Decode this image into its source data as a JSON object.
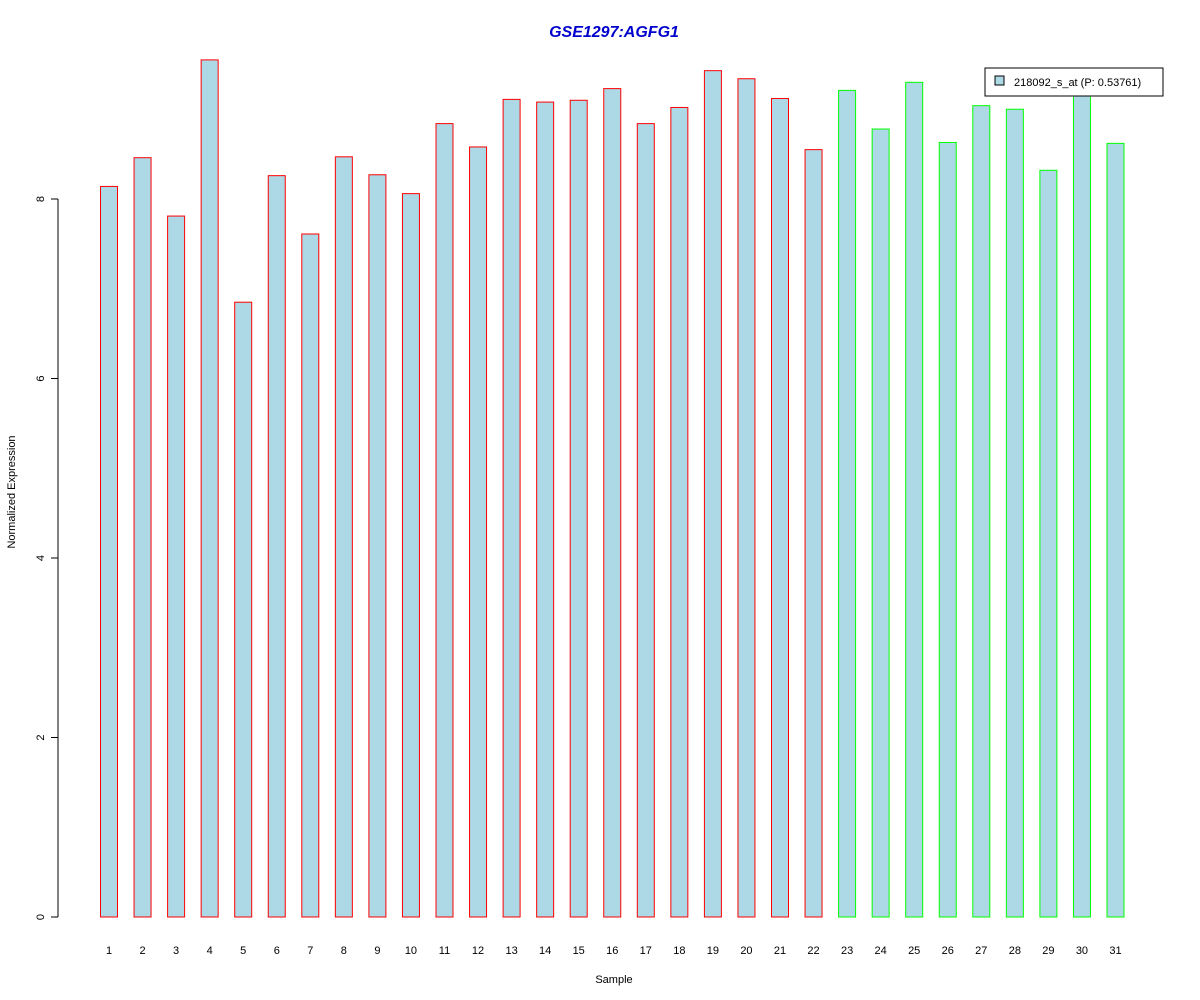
{
  "chart_data": {
    "type": "bar",
    "title": "GSE1297:AGFG1",
    "xlabel": "Sample",
    "ylabel": "Normalized Expression",
    "categories": [
      "1",
      "2",
      "3",
      "4",
      "5",
      "6",
      "7",
      "8",
      "9",
      "10",
      "11",
      "12",
      "13",
      "14",
      "15",
      "16",
      "17",
      "18",
      "19",
      "20",
      "21",
      "22",
      "23",
      "24",
      "25",
      "26",
      "27",
      "28",
      "29",
      "30",
      "31"
    ],
    "values": [
      8.14,
      8.46,
      7.81,
      9.55,
      6.85,
      8.26,
      7.61,
      8.47,
      8.27,
      8.06,
      8.84,
      8.58,
      9.11,
      9.08,
      9.1,
      9.23,
      8.84,
      9.02,
      9.43,
      9.34,
      9.12,
      8.55,
      9.21,
      8.78,
      9.3,
      8.63,
      9.04,
      9.0,
      8.32,
      9.2,
      8.62
    ],
    "group_1_samples": [
      "1",
      "2",
      "3",
      "4",
      "5",
      "6",
      "7",
      "8",
      "9",
      "10",
      "11",
      "12",
      "13",
      "14",
      "15",
      "16",
      "17",
      "18",
      "19",
      "20",
      "21",
      "22"
    ],
    "group_2_samples": [
      "23",
      "24",
      "25",
      "26",
      "27",
      "28",
      "29",
      "30",
      "31"
    ],
    "yticks": [
      0,
      2,
      4,
      6,
      8
    ],
    "ylim": [
      0,
      9.6
    ],
    "legend": {
      "label": "218092_s_at (P: 0.53761)",
      "position": "top-right"
    },
    "colors": {
      "fill": "#add8e6",
      "group_1_border": "#ff0000",
      "group_2_border": "#00ff00",
      "title": "#0000cc",
      "axis": "#000000"
    }
  }
}
